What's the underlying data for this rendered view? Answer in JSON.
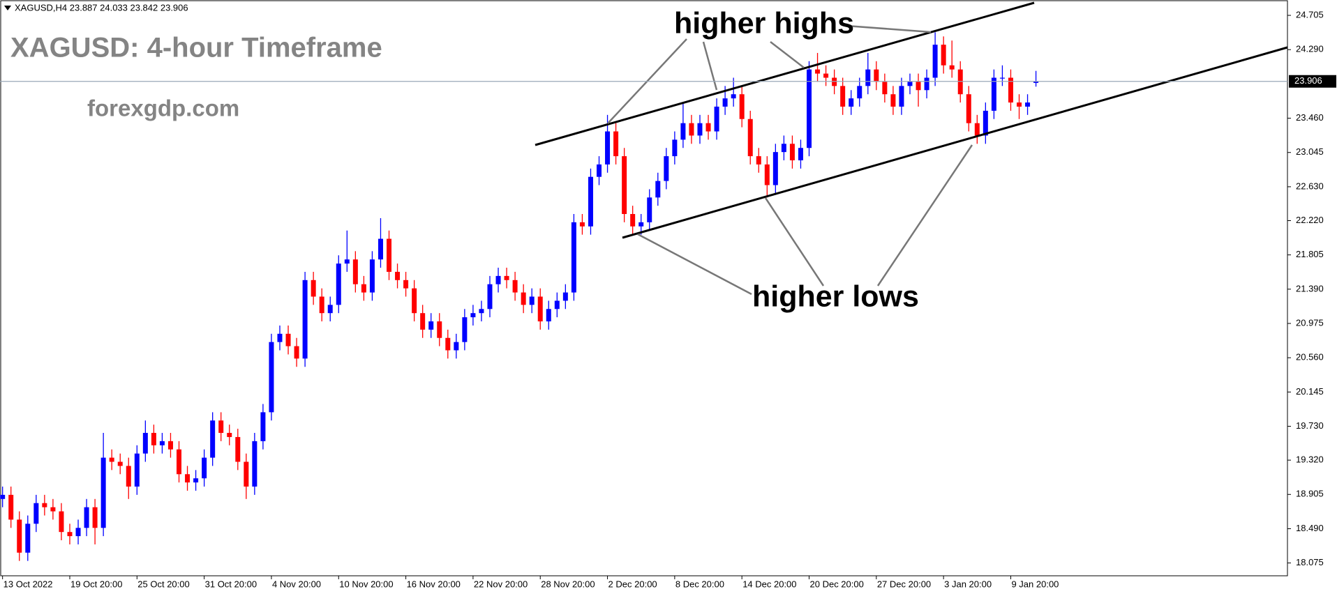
{
  "chart_data": {
    "type": "candlestick",
    "header": "XAGUSD,H4  23.887 24.033 23.842 23.906",
    "title": "XAGUSD: 4-hour Timeframe",
    "subtitle": "forexgdp.com",
    "annotations": [
      "higher highs",
      "higher lows"
    ],
    "color_up": "#0000ff",
    "color_down": "#ff0000",
    "ylim": [
      17.92,
      24.891
    ],
    "yticks": [
      24.705,
      {
        "value": 24.29,
        "label": "24.290"
      },
      {
        "value": 23.46,
        "label": "23.460"
      },
      23.045,
      {
        "value": 22.63,
        "label": "22.630"
      },
      {
        "value": 22.22,
        "label": "22.220"
      },
      21.805,
      {
        "value": 21.39,
        "label": "21.390"
      },
      20.975,
      {
        "value": 20.56,
        "label": "20.560"
      },
      20.145,
      {
        "value": 19.73,
        "label": "19.730"
      },
      {
        "value": 19.32,
        "label": "19.320"
      },
      18.905,
      {
        "value": 18.49,
        "label": "18.490"
      },
      18.075
    ],
    "categories": [
      "13 Oct 2022",
      null,
      null,
      null,
      null,
      null,
      null,
      null,
      "19 Oct 20:00",
      null,
      null,
      null,
      null,
      null,
      null,
      null,
      "25 Oct 20:00",
      null,
      null,
      null,
      null,
      null,
      null,
      null,
      "31 Oct 20:00",
      null,
      null,
      null,
      null,
      null,
      null,
      null,
      "4 Nov 20:00",
      null,
      null,
      null,
      null,
      null,
      null,
      null,
      "10 Nov 20:00",
      null,
      null,
      null,
      null,
      null,
      null,
      null,
      "16 Nov 20:00",
      null,
      null,
      null,
      null,
      null,
      null,
      null,
      "22 Nov 20:00",
      null,
      null,
      null,
      null,
      null,
      null,
      null,
      "28 Nov 20:00",
      null,
      null,
      null,
      null,
      null,
      null,
      null,
      "2 Dec 20:00",
      null,
      null,
      null,
      null,
      null,
      null,
      null,
      "8 Dec 20:00",
      null,
      null,
      null,
      null,
      null,
      null,
      null,
      "14 Dec 20:00",
      null,
      null,
      null,
      null,
      null,
      null,
      null,
      "20 Dec 20:00",
      null,
      null,
      null,
      null,
      null,
      null,
      null,
      "27 Dec 20:00",
      null,
      null,
      null,
      null,
      null,
      null,
      null,
      "3 Jan 20:00",
      null,
      null,
      null,
      null,
      null,
      null,
      null,
      "9 Jan 20:00",
      null,
      null,
      null
    ],
    "open": [
      18.85,
      18.9,
      18.6,
      18.2,
      18.55,
      18.8,
      18.75,
      18.7,
      18.45,
      18.4,
      18.5,
      18.75,
      18.5,
      19.35,
      19.3,
      19.25,
      19.0,
      19.4,
      19.65,
      19.5,
      19.55,
      19.45,
      19.15,
      19.05,
      19.1,
      19.35,
      19.8,
      19.65,
      19.6,
      19.3,
      19.0,
      19.55,
      19.9,
      20.75,
      20.85,
      20.7,
      20.55,
      21.5,
      21.3,
      21.1,
      21.2,
      21.7,
      21.75,
      21.45,
      21.35,
      21.75,
      22.0,
      21.6,
      21.5,
      21.4,
      21.1,
      20.9,
      21.0,
      20.8,
      20.65,
      20.75,
      21.05,
      21.1,
      21.15,
      21.45,
      21.55,
      21.5,
      21.35,
      21.2,
      21.3,
      21.0,
      21.15,
      21.25,
      21.35,
      22.2,
      22.15,
      22.75,
      22.9,
      23.3,
      23.0,
      22.3,
      22.15,
      22.2,
      22.5,
      22.7,
      23.0,
      23.2,
      23.4,
      23.25,
      23.4,
      23.3,
      23.6,
      23.7,
      23.75,
      23.45,
      23.0,
      22.9,
      22.65,
      23.05,
      23.15,
      22.95,
      23.1,
      24.05,
      24.0,
      23.95,
      23.85,
      23.6,
      23.7,
      23.85,
      24.05,
      23.9,
      23.75,
      23.6,
      23.85,
      23.9,
      23.8,
      23.95,
      24.35,
      24.1,
      24.05,
      23.75,
      23.4,
      23.25,
      23.55,
      23.95,
      23.95,
      23.65,
      23.6,
      23.887
    ],
    "high": [
      19.0,
      19.0,
      18.7,
      18.65,
      18.9,
      18.9,
      18.85,
      18.8,
      18.55,
      18.6,
      18.85,
      18.85,
      19.65,
      19.45,
      19.4,
      19.35,
      19.5,
      19.8,
      19.75,
      19.65,
      19.65,
      19.55,
      19.25,
      19.2,
      19.45,
      19.9,
      19.9,
      19.75,
      19.7,
      19.4,
      19.65,
      20.0,
      20.85,
      20.95,
      20.95,
      20.8,
      21.6,
      21.6,
      21.4,
      21.3,
      21.8,
      22.1,
      21.85,
      21.55,
      21.85,
      22.25,
      22.1,
      21.7,
      21.6,
      21.5,
      21.2,
      21.1,
      21.1,
      20.9,
      20.85,
      21.15,
      21.2,
      21.25,
      21.55,
      21.65,
      21.65,
      21.6,
      21.45,
      21.4,
      21.4,
      21.25,
      21.35,
      21.45,
      22.3,
      22.3,
      22.85,
      23.0,
      23.5,
      23.4,
      23.1,
      22.4,
      22.3,
      22.6,
      22.8,
      23.1,
      23.3,
      23.65,
      23.5,
      23.5,
      23.5,
      23.7,
      23.85,
      23.95,
      23.85,
      23.55,
      23.1,
      23.0,
      23.15,
      23.25,
      23.25,
      23.2,
      24.15,
      24.25,
      24.1,
      24.05,
      23.95,
      23.8,
      23.95,
      24.25,
      24.15,
      24.0,
      23.85,
      23.95,
      24.0,
      24.0,
      24.05,
      24.5,
      24.45,
      24.4,
      24.15,
      23.85,
      23.5,
      23.65,
      24.05,
      24.1,
      24.05,
      23.75,
      23.75,
      24.033
    ],
    "low": [
      18.75,
      18.5,
      18.1,
      18.1,
      18.45,
      18.65,
      18.6,
      18.35,
      18.3,
      18.3,
      18.4,
      18.3,
      18.4,
      19.2,
      19.15,
      18.85,
      18.9,
      19.3,
      19.4,
      19.4,
      19.35,
      19.05,
      18.95,
      18.95,
      19.0,
      19.25,
      19.55,
      19.5,
      19.2,
      18.85,
      18.9,
      19.45,
      19.8,
      20.65,
      20.6,
      20.45,
      20.45,
      21.2,
      21.0,
      21.0,
      21.1,
      21.6,
      21.35,
      21.25,
      21.25,
      21.65,
      21.5,
      21.4,
      21.3,
      21.0,
      20.8,
      20.8,
      20.7,
      20.55,
      20.55,
      20.65,
      20.95,
      21.0,
      21.05,
      21.35,
      21.4,
      21.25,
      21.1,
      21.1,
      20.9,
      20.9,
      21.05,
      21.15,
      21.25,
      22.05,
      22.05,
      22.65,
      22.8,
      22.9,
      22.2,
      22.05,
      22.05,
      22.1,
      22.4,
      22.6,
      22.9,
      23.1,
      23.15,
      23.15,
      23.2,
      23.2,
      23.5,
      23.6,
      23.35,
      22.9,
      22.8,
      22.5,
      22.55,
      22.95,
      22.85,
      22.85,
      23.0,
      23.9,
      23.85,
      23.75,
      23.5,
      23.5,
      23.6,
      23.75,
      23.8,
      23.65,
      23.5,
      23.5,
      23.75,
      23.6,
      23.7,
      23.85,
      24.0,
      23.95,
      23.65,
      23.3,
      23.15,
      23.15,
      23.45,
      23.85,
      23.55,
      23.45,
      23.5,
      23.842
    ],
    "close": [
      18.9,
      18.6,
      18.2,
      18.55,
      18.8,
      18.75,
      18.7,
      18.45,
      18.4,
      18.5,
      18.75,
      18.5,
      19.35,
      19.3,
      19.25,
      19.0,
      19.4,
      19.65,
      19.5,
      19.55,
      19.45,
      19.15,
      19.05,
      19.1,
      19.35,
      19.8,
      19.65,
      19.6,
      19.3,
      19.0,
      19.55,
      19.9,
      20.75,
      20.85,
      20.7,
      20.55,
      21.5,
      21.3,
      21.1,
      21.2,
      21.7,
      21.75,
      21.45,
      21.35,
      21.75,
      22.0,
      21.6,
      21.5,
      21.4,
      21.1,
      20.9,
      21.0,
      20.8,
      20.65,
      20.75,
      21.05,
      21.1,
      21.15,
      21.45,
      21.55,
      21.5,
      21.35,
      21.2,
      21.3,
      21.0,
      21.15,
      21.25,
      21.35,
      22.2,
      22.15,
      22.75,
      22.9,
      23.3,
      23.0,
      22.3,
      22.15,
      22.2,
      22.5,
      22.7,
      23.0,
      23.2,
      23.4,
      23.25,
      23.4,
      23.3,
      23.6,
      23.7,
      23.75,
      23.45,
      23.0,
      22.9,
      22.65,
      23.05,
      23.15,
      22.95,
      23.1,
      24.05,
      24.0,
      23.95,
      23.85,
      23.6,
      23.7,
      23.85,
      24.05,
      23.9,
      23.75,
      23.6,
      23.85,
      23.9,
      23.8,
      23.95,
      24.35,
      24.1,
      24.05,
      23.75,
      23.4,
      23.25,
      23.55,
      23.95,
      23.95,
      23.65,
      23.6,
      23.65,
      23.906
    ]
  }
}
